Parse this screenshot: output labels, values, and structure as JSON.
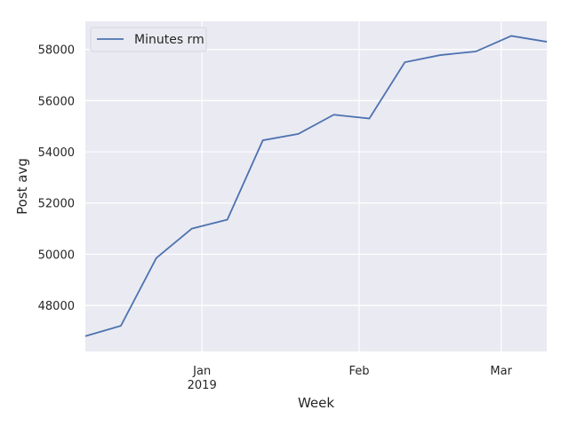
{
  "chart_data": {
    "type": "line",
    "xlabel": "Week",
    "ylabel": "Post avg",
    "x": [
      "2018-12-09",
      "2018-12-16",
      "2018-12-23",
      "2018-12-30",
      "2019-01-06",
      "2019-01-13",
      "2019-01-20",
      "2019-01-27",
      "2019-02-03",
      "2019-02-10",
      "2019-02-17",
      "2019-02-24",
      "2019-03-03",
      "2019-03-10"
    ],
    "series": [
      {
        "name": "Minutes rm",
        "color": "#4c72b0",
        "values": [
          46800,
          47200,
          49850,
          51000,
          51350,
          54450,
          54700,
          55450,
          55300,
          57500,
          57780,
          57920,
          58530,
          58300
        ]
      }
    ],
    "xlim": [
      "2018-12-09",
      "2019-03-10"
    ],
    "ylim": [
      46200,
      59100
    ],
    "yticks": [
      48000,
      50000,
      52000,
      54000,
      56000,
      58000
    ],
    "xticks": [
      {
        "date": "2019-01-01",
        "label": "Jan",
        "sublabel": "2019"
      },
      {
        "date": "2019-02-01",
        "label": "Feb",
        "sublabel": ""
      },
      {
        "date": "2019-03-01",
        "label": "Mar",
        "sublabel": ""
      }
    ],
    "grid": true,
    "legend_position": "top-left",
    "background": "#eaeaf2"
  }
}
